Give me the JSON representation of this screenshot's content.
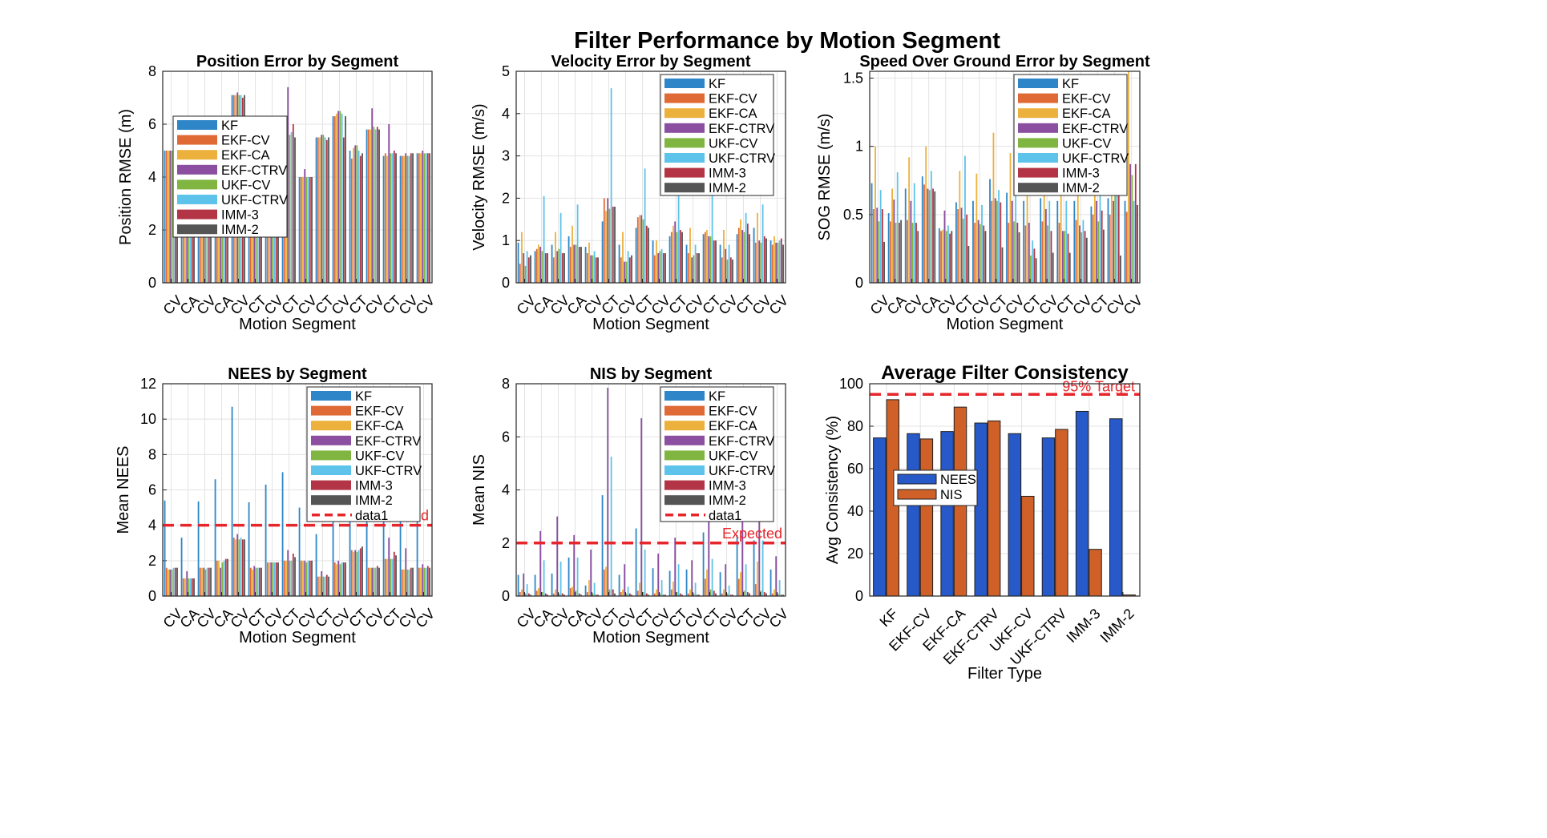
{
  "figure_title": "Filter Performance by Motion Segment",
  "colors": {
    "KF": "#2e86c8",
    "EKF-CV": "#e06a35",
    "EKF-CA": "#ecb13c",
    "EKF-CTRV": "#8b4ea0",
    "UKF-CV": "#7fb540",
    "UKF-CTRV": "#5ec3ea",
    "IMM-3": "#b33545",
    "IMM-2": "#555555",
    "ref_line": "#e6262b",
    "nees_bar": "#2859c9",
    "nis_bar": "#cf6128"
  },
  "chart_data": [
    {
      "type": "bar",
      "title": "Position Error by Segment",
      "xlabel": "Motion Segment",
      "ylabel": "Position RMSE (m)",
      "ylim": [
        0,
        8
      ],
      "yticks": [
        "0",
        "2",
        "4",
        "6",
        "8"
      ],
      "grid": true,
      "legend_placement": "middle-left",
      "categories": [
        "CV",
        "CA",
        "CV",
        "CA",
        "CV",
        "CT",
        "CV",
        "CT",
        "CV",
        "CT",
        "CV",
        "CT",
        "CV",
        "CT",
        "CV",
        "CV"
      ],
      "series": [
        {
          "name": "KF",
          "values": [
            5.0,
            4.0,
            3.9,
            4.3,
            7.1,
            3.9,
            3.8,
            5.7,
            4.0,
            5.5,
            6.3,
            5.0,
            5.8,
            4.8,
            4.8,
            4.9
          ]
        },
        {
          "name": "EKF-CV",
          "values": [
            5.0,
            4.0,
            3.9,
            4.3,
            7.1,
            3.9,
            3.8,
            5.7,
            4.0,
            5.5,
            6.3,
            4.7,
            5.8,
            4.9,
            4.8,
            4.9
          ]
        },
        {
          "name": "EKF-CA",
          "values": [
            5.0,
            4.0,
            3.9,
            4.3,
            7.1,
            3.9,
            3.8,
            5.6,
            4.0,
            5.5,
            6.4,
            5.1,
            5.8,
            4.8,
            4.8,
            4.9
          ]
        },
        {
          "name": "EKF-CTRV",
          "values": [
            5.0,
            4.1,
            4.0,
            4.4,
            7.2,
            4.0,
            3.9,
            7.4,
            4.3,
            5.6,
            6.5,
            5.2,
            6.6,
            6.0,
            4.9,
            5.0
          ]
        },
        {
          "name": "UKF-CV",
          "values": [
            5.0,
            4.0,
            3.9,
            4.3,
            7.1,
            3.9,
            3.8,
            5.6,
            4.0,
            5.6,
            6.5,
            5.2,
            5.9,
            4.9,
            4.8,
            4.9
          ]
        },
        {
          "name": "UKF-CTRV",
          "values": [
            5.0,
            4.0,
            3.9,
            4.3,
            7.1,
            3.9,
            3.8,
            5.7,
            4.0,
            5.5,
            6.4,
            5.0,
            5.8,
            4.9,
            4.8,
            4.9
          ]
        },
        {
          "name": "IMM-3",
          "values": [
            5.0,
            4.0,
            3.9,
            4.3,
            7.0,
            3.9,
            3.8,
            6.0,
            4.0,
            5.4,
            5.5,
            4.8,
            5.9,
            5.0,
            4.9,
            4.9
          ]
        },
        {
          "name": "IMM-2",
          "values": [
            5.0,
            4.0,
            3.9,
            4.3,
            7.1,
            3.9,
            3.8,
            5.5,
            4.0,
            5.5,
            6.3,
            4.9,
            5.8,
            4.9,
            4.9,
            4.9
          ]
        }
      ]
    },
    {
      "type": "bar",
      "title": "Velocity Error by Segment",
      "xlabel": "Motion Segment",
      "ylabel": "Velocity RMSE (m/s)",
      "ylim": [
        0,
        5
      ],
      "yticks": [
        "0",
        "1",
        "2",
        "3",
        "4",
        "5"
      ],
      "grid": true,
      "legend_placement": "top-right",
      "categories": [
        "CV",
        "CA",
        "CV",
        "CA",
        "CV",
        "CT",
        "CV",
        "CT",
        "CV",
        "CT",
        "CV",
        "CT",
        "CV",
        "CT",
        "CV",
        "CV"
      ],
      "series": [
        {
          "name": "KF",
          "values": [
            0.95,
            0.75,
            0.9,
            1.1,
            0.85,
            1.45,
            0.9,
            1.3,
            1.0,
            1.1,
            0.9,
            1.15,
            0.9,
            1.15,
            1.3,
            1.0
          ]
        },
        {
          "name": "EKF-CV",
          "values": [
            0.45,
            0.8,
            0.6,
            0.85,
            0.7,
            2.0,
            0.6,
            1.55,
            0.65,
            1.2,
            0.7,
            1.2,
            0.6,
            1.3,
            0.95,
            0.9
          ]
        },
        {
          "name": "EKF-CA",
          "values": [
            1.2,
            0.9,
            1.2,
            1.35,
            0.95,
            1.7,
            1.2,
            1.6,
            1.0,
            1.35,
            1.3,
            1.25,
            1.25,
            1.5,
            1.65,
            1.1
          ]
        },
        {
          "name": "EKF-CTRV",
          "values": [
            0.7,
            0.85,
            0.75,
            0.9,
            0.65,
            2.0,
            0.5,
            1.6,
            0.7,
            1.45,
            0.6,
            1.1,
            0.8,
            1.25,
            1.0,
            0.95
          ]
        },
        {
          "name": "UKF-CV",
          "values": [
            0.4,
            0.75,
            0.8,
            0.9,
            0.65,
            1.75,
            0.5,
            1.5,
            0.75,
            1.2,
            0.65,
            1.1,
            0.55,
            1.2,
            0.95,
            0.95
          ]
        },
        {
          "name": "UKF-CTRV",
          "values": [
            0.75,
            2.05,
            1.65,
            1.85,
            0.75,
            4.6,
            0.75,
            2.7,
            0.8,
            2.1,
            0.9,
            2.15,
            0.9,
            1.65,
            1.85,
            1.0
          ]
        },
        {
          "name": "IMM-3",
          "values": [
            0.6,
            0.7,
            0.7,
            0.85,
            0.6,
            1.8,
            0.6,
            1.35,
            0.7,
            1.25,
            0.7,
            1.0,
            0.6,
            1.4,
            1.1,
            1.05
          ]
        },
        {
          "name": "IMM-2",
          "values": [
            0.65,
            0.7,
            0.7,
            0.85,
            0.6,
            1.8,
            0.65,
            1.3,
            0.7,
            1.2,
            0.7,
            1.0,
            0.55,
            1.15,
            1.05,
            0.9
          ]
        }
      ]
    },
    {
      "type": "bar",
      "title": "Speed Over Ground Error by Segment",
      "xlabel": "Motion Segment",
      "ylabel": "SOG RMSE (m/s)",
      "ylim": [
        0,
        1.55
      ],
      "yticks": [
        "0",
        "0.5",
        "1",
        "1.5"
      ],
      "ytick_values": [
        0,
        0.5,
        1,
        1.5
      ],
      "grid": true,
      "legend_placement": "top-right",
      "categories": [
        "CV",
        "CA",
        "CV",
        "CA",
        "CV",
        "CT",
        "CV",
        "CT",
        "CV",
        "CT",
        "CV",
        "CT",
        "CV",
        "CT",
        "CV",
        "CV"
      ],
      "series": [
        {
          "name": "KF",
          "values": [
            0.73,
            0.51,
            0.69,
            0.78,
            0.4,
            0.59,
            0.6,
            0.76,
            0.66,
            0.6,
            0.62,
            0.6,
            0.6,
            0.56,
            0.62,
            0.6
          ]
        },
        {
          "name": "EKF-CV",
          "values": [
            0.54,
            0.45,
            0.46,
            0.72,
            0.38,
            0.54,
            0.44,
            0.6,
            0.44,
            0.42,
            0.45,
            0.44,
            0.46,
            0.5,
            0.5,
            0.52
          ]
        },
        {
          "name": "EKF-CA",
          "values": [
            1.0,
            0.69,
            0.92,
            1.0,
            0.39,
            0.82,
            0.8,
            1.1,
            0.95,
            0.72,
            0.8,
            0.7,
            0.69,
            0.72,
            0.98,
            1.55
          ]
        },
        {
          "name": "EKF-CTRV",
          "values": [
            0.55,
            0.61,
            0.6,
            0.69,
            0.53,
            0.55,
            0.46,
            0.62,
            0.6,
            0.44,
            0.54,
            0.38,
            0.42,
            0.6,
            0.6,
            0.87
          ]
        },
        {
          "name": "UKF-CV",
          "values": [
            0.45,
            0.44,
            0.44,
            0.68,
            0.38,
            0.47,
            0.43,
            0.6,
            0.45,
            0.2,
            0.42,
            0.38,
            0.37,
            0.45,
            0.7,
            0.79
          ]
        },
        {
          "name": "UKF-CTRV",
          "values": [
            0.68,
            0.81,
            0.73,
            0.82,
            0.42,
            0.93,
            0.57,
            0.68,
            0.72,
            0.31,
            0.6,
            0.6,
            0.46,
            0.69,
            0.7,
            0.6
          ]
        },
        {
          "name": "IMM-3",
          "values": [
            0.54,
            0.44,
            0.44,
            0.69,
            0.36,
            0.5,
            0.42,
            0.59,
            0.44,
            0.25,
            0.38,
            0.36,
            0.38,
            0.53,
            0.66,
            0.87
          ]
        },
        {
          "name": "IMM-2",
          "values": [
            0.3,
            0.46,
            0.38,
            0.67,
            0.38,
            0.27,
            0.38,
            0.26,
            0.37,
            0.18,
            0.22,
            0.22,
            0.33,
            0.39,
            0.2,
            0.57
          ]
        }
      ]
    },
    {
      "type": "bar",
      "title": "NEES by Segment",
      "xlabel": "Motion Segment",
      "ylabel": "Mean NEES",
      "ylim": [
        0,
        12
      ],
      "yticks": [
        "0",
        "2",
        "4",
        "6",
        "8",
        "10",
        "12"
      ],
      "grid": true,
      "legend_placement": "top-right",
      "reference_line": {
        "y": 4,
        "legend_label": "data1",
        "partial_text": "d"
      },
      "categories": [
        "CV",
        "CA",
        "CV",
        "CA",
        "CV",
        "CT",
        "CV",
        "CT",
        "CV",
        "CT",
        "CV",
        "CT",
        "CV",
        "CT",
        "CV",
        "CV"
      ],
      "series": [
        {
          "name": "KF",
          "values": [
            5.4,
            3.3,
            5.35,
            6.6,
            10.7,
            5.3,
            6.3,
            7.0,
            5.0,
            3.5,
            5.4,
            5.3,
            5.4,
            4.6,
            4.7,
            5.0
          ]
        },
        {
          "name": "EKF-CV",
          "values": [
            1.6,
            1.0,
            1.6,
            2.0,
            3.3,
            1.6,
            1.9,
            2.0,
            2.0,
            1.1,
            1.9,
            2.6,
            1.6,
            2.1,
            1.5,
            1.6
          ]
        },
        {
          "name": "EKF-CA",
          "values": [
            1.5,
            1.0,
            1.6,
            2.0,
            3.2,
            1.5,
            1.9,
            2.0,
            2.0,
            1.1,
            1.8,
            2.5,
            1.6,
            2.1,
            1.5,
            1.6
          ]
        },
        {
          "name": "EKF-CTRV",
          "values": [
            1.5,
            1.4,
            1.6,
            1.6,
            3.5,
            1.7,
            1.9,
            2.6,
            2.0,
            1.4,
            2.0,
            2.6,
            1.6,
            3.3,
            2.7,
            1.8
          ]
        },
        {
          "name": "UKF-CV",
          "values": [
            1.5,
            1.0,
            1.5,
            1.9,
            3.2,
            1.6,
            1.9,
            2.0,
            1.9,
            1.1,
            1.8,
            2.5,
            1.6,
            2.1,
            1.5,
            1.6
          ]
        },
        {
          "name": "UKF-CTRV",
          "values": [
            1.6,
            1.0,
            1.6,
            2.0,
            3.3,
            1.6,
            1.9,
            2.0,
            2.0,
            1.1,
            1.9,
            2.6,
            1.6,
            2.1,
            1.5,
            1.6
          ]
        },
        {
          "name": "IMM-3",
          "values": [
            1.6,
            1.0,
            1.6,
            2.1,
            3.2,
            1.6,
            1.9,
            2.4,
            2.0,
            1.2,
            1.9,
            2.7,
            1.7,
            2.5,
            1.6,
            1.7
          ]
        },
        {
          "name": "IMM-2",
          "values": [
            1.6,
            1.0,
            1.6,
            2.1,
            3.2,
            1.6,
            1.9,
            2.2,
            2.0,
            1.1,
            1.9,
            2.8,
            1.6,
            2.3,
            1.6,
            1.6
          ]
        }
      ]
    },
    {
      "type": "bar",
      "title": "NIS by Segment",
      "xlabel": "Motion Segment",
      "ylabel": "Mean NIS",
      "ylim": [
        0,
        8
      ],
      "yticks": [
        "0",
        "2",
        "4",
        "6",
        "8"
      ],
      "grid": true,
      "legend_placement": "top-right",
      "reference_line": {
        "y": 2,
        "legend_label": "data1",
        "text": "Expected"
      },
      "categories": [
        "CV",
        "CA",
        "CV",
        "CA",
        "CV",
        "CT",
        "CV",
        "CT",
        "CV",
        "CT",
        "CV",
        "CT",
        "CV",
        "CT",
        "CV",
        "CV"
      ],
      "series": [
        {
          "name": "KF",
          "values": [
            0.8,
            0.8,
            0.85,
            1.45,
            0.4,
            3.8,
            0.8,
            2.55,
            1.05,
            0.95,
            1.0,
            2.4,
            0.9,
            2.3,
            2.1,
            1.0
          ]
        },
        {
          "name": "EKF-CV",
          "values": [
            0.15,
            0.2,
            0.1,
            0.3,
            0.15,
            1.0,
            0.15,
            0.2,
            0.1,
            0.25,
            0.1,
            0.65,
            0.1,
            0.65,
            0.45,
            0.1
          ]
        },
        {
          "name": "EKF-CA",
          "values": [
            0.25,
            0.3,
            0.25,
            0.35,
            0.6,
            1.1,
            0.25,
            0.5,
            0.25,
            0.55,
            0.25,
            1.0,
            0.25,
            0.9,
            1.3,
            0.25
          ]
        },
        {
          "name": "EKF-CTRV",
          "values": [
            0.85,
            2.45,
            3.0,
            2.3,
            1.75,
            7.85,
            1.2,
            6.7,
            1.6,
            2.2,
            1.35,
            3.1,
            1.2,
            3.3,
            4.15,
            1.5
          ]
        },
        {
          "name": "UKF-CV",
          "values": [
            0.1,
            0.15,
            0.1,
            0.2,
            0.1,
            0.25,
            0.1,
            0.15,
            0.1,
            0.15,
            0.1,
            0.25,
            0.1,
            0.2,
            0.2,
            0.1
          ]
        },
        {
          "name": "UKF-CTRV",
          "values": [
            0.45,
            1.35,
            1.3,
            1.45,
            0.5,
            5.25,
            0.35,
            1.75,
            0.6,
            1.2,
            0.5,
            1.4,
            0.4,
            1.2,
            2.1,
            0.6
          ]
        },
        {
          "name": "IMM-3",
          "values": [
            0.1,
            0.1,
            0.1,
            0.1,
            0.05,
            0.25,
            0.1,
            0.1,
            0.05,
            0.1,
            0.05,
            0.2,
            0.05,
            0.15,
            0.15,
            0.05
          ]
        },
        {
          "name": "IMM-2",
          "values": [
            0.05,
            0.05,
            0.05,
            0.05,
            0.05,
            0.1,
            0.05,
            0.05,
            0.05,
            0.05,
            0.05,
            0.1,
            0.05,
            0.1,
            0.1,
            0.05
          ]
        }
      ]
    },
    {
      "type": "bar",
      "title": "Average Filter Consistency",
      "xlabel": "Filter Type",
      "ylabel": "Avg Consistency (%)",
      "ylim": [
        0,
        100
      ],
      "yticks": [
        "0",
        "20",
        "40",
        "60",
        "80",
        "100"
      ],
      "grid": true,
      "legend_placement": "middle-left",
      "reference_line": {
        "y": 95,
        "text": "95% Target"
      },
      "categories": [
        "KF",
        "EKF-CV",
        "EKF-CA",
        "EKF-CTRV",
        "UKF-CV",
        "UKF-CTRV",
        "IMM-3",
        "IMM-2"
      ],
      "series": [
        {
          "name": "NEES",
          "values": [
            74.5,
            76.5,
            77.5,
            81.5,
            76.5,
            74.5,
            87.0,
            83.5
          ]
        },
        {
          "name": "NIS",
          "values": [
            92.5,
            74.0,
            89.0,
            82.5,
            47.0,
            78.5,
            22.0,
            0.5
          ]
        }
      ]
    }
  ]
}
